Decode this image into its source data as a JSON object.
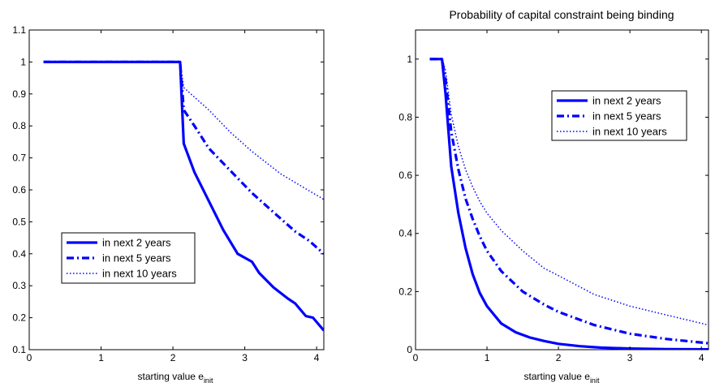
{
  "chart_data": [
    {
      "type": "line",
      "title": "",
      "xlabel": "starting value e",
      "xlabel_sub": "init",
      "ylabel": "",
      "xlim": [
        0,
        4.1
      ],
      "ylim": [
        0.1,
        1.1
      ],
      "xticks": [
        0,
        1,
        2,
        3,
        4
      ],
      "xtick_labels": [
        "0",
        "1",
        "2",
        "3",
        "4"
      ],
      "yticks": [
        0.1,
        0.2,
        0.3,
        0.4,
        0.5,
        0.6,
        0.7,
        0.8,
        0.9,
        1,
        1.1
      ],
      "ytick_labels": [
        "0.1",
        "0.2",
        "0.3",
        "0.4",
        "0.5",
        "0.6",
        "0.7",
        "0.8",
        "0.9",
        "1",
        "1.1"
      ],
      "grid": false,
      "legend_position": "center-left",
      "series": [
        {
          "name": "in next 2 years",
          "style": "solid",
          "color": "#0000ff",
          "x": [
            0.2,
            0.5,
            1.0,
            1.5,
            2.0,
            2.1,
            2.15,
            2.3,
            2.5,
            2.7,
            2.9,
            3.1,
            3.2,
            3.4,
            3.6,
            3.7,
            3.85,
            3.95,
            4.1
          ],
          "y": [
            1,
            1,
            1,
            1,
            1,
            1,
            0.745,
            0.655,
            0.565,
            0.475,
            0.4,
            0.375,
            0.34,
            0.295,
            0.26,
            0.245,
            0.205,
            0.2,
            0.16
          ]
        },
        {
          "name": "in next 5 years",
          "style": "dashdot",
          "color": "#0000ff",
          "x": [
            0.2,
            0.5,
            1.0,
            1.5,
            2.0,
            2.1,
            2.15,
            2.3,
            2.5,
            2.8,
            3.1,
            3.4,
            3.7,
            3.9,
            4.1
          ],
          "y": [
            1,
            1,
            1,
            1,
            1,
            1,
            0.85,
            0.8,
            0.73,
            0.66,
            0.59,
            0.53,
            0.47,
            0.44,
            0.4
          ]
        },
        {
          "name": "in next 10 years",
          "style": "dotted",
          "color": "#0000ff",
          "x": [
            0.2,
            0.5,
            1.0,
            1.5,
            2.0,
            2.1,
            2.15,
            2.3,
            2.5,
            2.8,
            3.1,
            3.5,
            3.8,
            4.1
          ],
          "y": [
            1,
            1,
            1,
            1,
            1,
            1,
            0.92,
            0.89,
            0.85,
            0.78,
            0.72,
            0.65,
            0.61,
            0.57
          ]
        }
      ]
    },
    {
      "type": "line",
      "title": "Probability of capital constraint being binding",
      "xlabel": "starting value e",
      "xlabel_sub": "init",
      "ylabel": "",
      "xlim": [
        0,
        4.1
      ],
      "ylim": [
        0,
        1.1
      ],
      "xticks": [
        0,
        1,
        2,
        3,
        4
      ],
      "xtick_labels": [
        "0",
        "1",
        "2",
        "3",
        "4"
      ],
      "yticks": [
        0,
        0.2,
        0.4,
        0.6,
        0.8,
        1
      ],
      "ytick_labels": [
        "0",
        "0.2",
        "0.4",
        "0.6",
        "0.8",
        "1"
      ],
      "grid": false,
      "legend_position": "top-right",
      "series": [
        {
          "name": "in next 2 years",
          "style": "solid",
          "color": "#0000ff",
          "x": [
            0.2,
            0.3,
            0.37,
            0.42,
            0.5,
            0.6,
            0.7,
            0.8,
            0.9,
            1.0,
            1.2,
            1.4,
            1.6,
            1.8,
            2.0,
            2.3,
            2.6,
            3.0,
            3.5,
            4.1
          ],
          "y": [
            1,
            1,
            1,
            0.88,
            0.63,
            0.47,
            0.35,
            0.26,
            0.195,
            0.15,
            0.09,
            0.06,
            0.042,
            0.03,
            0.02,
            0.012,
            0.007,
            0.004,
            0.002,
            0.001
          ]
        },
        {
          "name": "in next 5 years",
          "style": "dashdot",
          "color": "#0000ff",
          "x": [
            0.2,
            0.3,
            0.37,
            0.42,
            0.5,
            0.6,
            0.7,
            0.8,
            0.9,
            1.0,
            1.2,
            1.5,
            1.8,
            2.0,
            2.5,
            3.0,
            3.5,
            4.1
          ],
          "y": [
            1,
            1,
            1,
            0.93,
            0.75,
            0.62,
            0.52,
            0.45,
            0.39,
            0.34,
            0.27,
            0.2,
            0.155,
            0.13,
            0.085,
            0.055,
            0.037,
            0.022
          ]
        },
        {
          "name": "in next 10 years",
          "style": "dotted",
          "color": "#0000ff",
          "x": [
            0.2,
            0.3,
            0.37,
            0.42,
            0.5,
            0.6,
            0.7,
            0.8,
            0.9,
            1.0,
            1.2,
            1.5,
            1.8,
            2.0,
            2.5,
            3.0,
            3.5,
            4.1
          ],
          "y": [
            1,
            1,
            1,
            0.96,
            0.81,
            0.7,
            0.62,
            0.56,
            0.51,
            0.47,
            0.41,
            0.34,
            0.28,
            0.255,
            0.19,
            0.15,
            0.12,
            0.085
          ]
        }
      ]
    }
  ]
}
